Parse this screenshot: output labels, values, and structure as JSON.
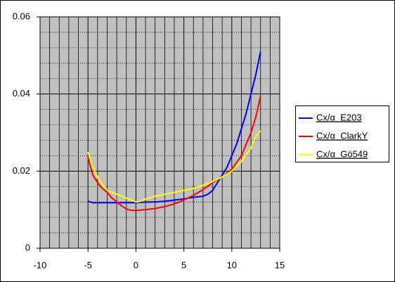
{
  "chart_data": {
    "type": "line",
    "xlim": [
      -10,
      15
    ],
    "xticks": [
      -10,
      -5,
      0,
      5,
      10,
      15
    ],
    "xminorticks": [
      -9,
      -8,
      -7,
      -6,
      -4,
      -3,
      -2,
      -1,
      1,
      2,
      3,
      4,
      6,
      7,
      8,
      9,
      11,
      12,
      13,
      14
    ],
    "ylim": [
      0,
      0.06
    ],
    "yticks": [
      0,
      0.02,
      0.04,
      0.06
    ],
    "yminorticks": [
      0.004,
      0.008,
      0.012,
      0.016,
      0.024,
      0.028,
      0.032,
      0.036,
      0.044,
      0.048,
      0.052,
      0.056
    ],
    "grid": true,
    "legend": "right",
    "background": "#c0c0c0",
    "series": [
      {
        "name": "Cx/α  E203",
        "color": "#0000ff",
        "x": [
          -5,
          -4.5,
          -4,
          -3,
          -2,
          -1,
          0,
          1,
          2,
          3,
          4,
          5,
          6,
          7,
          7.5,
          8,
          8.5,
          9,
          9.5,
          10,
          10.5,
          11,
          11.5,
          12,
          12.5,
          13
        ],
        "values": [
          0.0122,
          0.0118,
          0.0118,
          0.0118,
          0.0118,
          0.0118,
          0.0118,
          0.012,
          0.012,
          0.0122,
          0.0125,
          0.0128,
          0.0132,
          0.0135,
          0.014,
          0.015,
          0.017,
          0.019,
          0.021,
          0.024,
          0.027,
          0.031,
          0.035,
          0.04,
          0.045,
          0.051
        ]
      },
      {
        "name": "Cx/α  ClarkY",
        "color": "#ff0000",
        "x": [
          -5,
          -4.5,
          -4,
          -3.5,
          -3,
          -2.5,
          -2,
          -1.5,
          -1,
          -0.5,
          0,
          1,
          2,
          3,
          4,
          5,
          6,
          7,
          8,
          9,
          10,
          11,
          12,
          12.5,
          13
        ],
        "values": [
          0.0235,
          0.019,
          0.017,
          0.0155,
          0.0145,
          0.013,
          0.012,
          0.011,
          0.0102,
          0.0098,
          0.0098,
          0.01,
          0.0103,
          0.0108,
          0.0115,
          0.0125,
          0.0137,
          0.0152,
          0.017,
          0.0185,
          0.0205,
          0.024,
          0.03,
          0.034,
          0.0395
        ]
      },
      {
        "name": "Cx/α  Gö549",
        "color": "#ffff00",
        "x": [
          -5,
          -4.5,
          -4,
          -3.5,
          -3,
          -2,
          -1,
          -0.5,
          0,
          0.5,
          1,
          2,
          3,
          4,
          5,
          6,
          7,
          8,
          9,
          10,
          11,
          12,
          12.5,
          13
        ],
        "values": [
          0.025,
          0.021,
          0.0185,
          0.0165,
          0.015,
          0.014,
          0.013,
          0.0125,
          0.012,
          0.0122,
          0.0128,
          0.0135,
          0.014,
          0.0145,
          0.015,
          0.0155,
          0.0163,
          0.0173,
          0.0185,
          0.02,
          0.0225,
          0.026,
          0.029,
          0.0305
        ]
      }
    ]
  }
}
